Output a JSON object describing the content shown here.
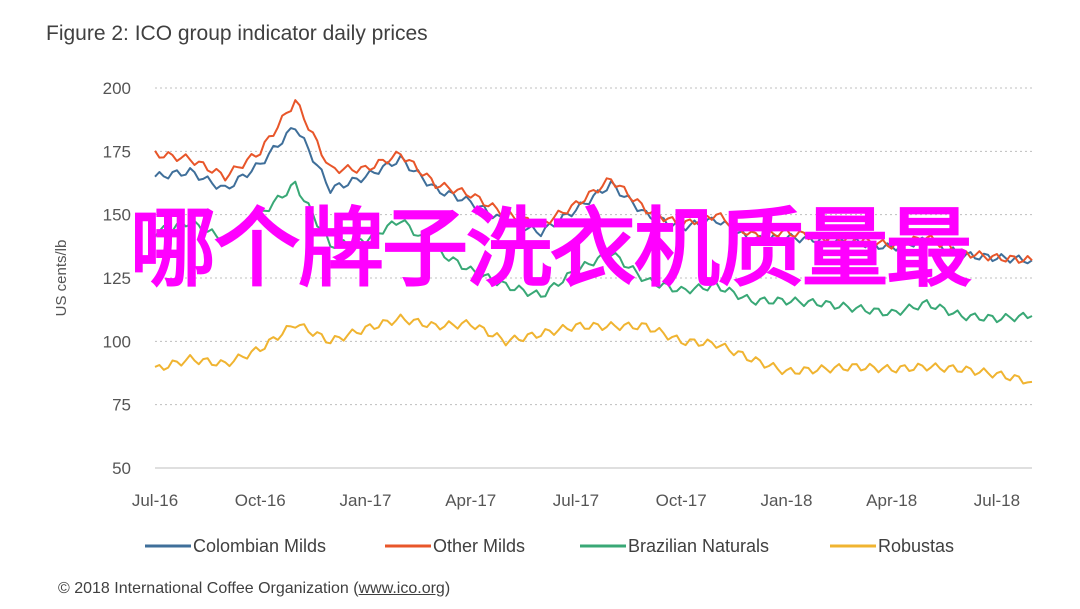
{
  "figure_title": "Figure 2: ICO group indicator daily prices",
  "footer": {
    "prefix": "© 2018 International Coffee Organization (",
    "link": "www.ico.org",
    "suffix": ")"
  },
  "overlay_text": "哪个牌子洗衣机质量最",
  "colors": {
    "Colombian Milds": "#3f6f9a",
    "Other Milds": "#e8562a",
    "Brazilian Naturals": "#39a876",
    "Robustas": "#f0b431",
    "grid": "#bfbfbf",
    "overlay": "#ff00ff"
  },
  "chart_data": {
    "type": "line",
    "title": "Figure 2: ICO group indicator daily prices",
    "ylabel": "US cents/lb",
    "xlabel": "",
    "ylim": [
      50,
      200
    ],
    "yticks": [
      50,
      75,
      100,
      125,
      150,
      175,
      200
    ],
    "xlim": [
      "2016-07",
      "2018-08"
    ],
    "xticks": [
      "Jul-16",
      "Oct-16",
      "Jan-17",
      "Apr-17",
      "Jul-17",
      "Oct-17",
      "Jan-18",
      "Apr-18",
      "Jul-18"
    ],
    "grid": "horizontal dotted",
    "legend": "bottom",
    "x": [
      "2016-07",
      "2016-08",
      "2016-09",
      "2016-10",
      "2016-11",
      "2016-12",
      "2017-01",
      "2017-02",
      "2017-03",
      "2017-04",
      "2017-05",
      "2017-06",
      "2017-07",
      "2017-08",
      "2017-09",
      "2017-10",
      "2017-11",
      "2017-12",
      "2018-01",
      "2018-02",
      "2018-03",
      "2018-04",
      "2018-05",
      "2018-06",
      "2018-07",
      "2018-08"
    ],
    "series": [
      {
        "name": "Colombian Milds",
        "values": [
          165,
          167,
          160,
          170,
          185,
          160,
          165,
          172,
          160,
          155,
          147,
          143,
          152,
          162,
          150,
          145,
          148,
          140,
          141,
          140,
          139,
          137,
          140,
          134,
          133,
          132
        ]
      },
      {
        "name": "Other Milds",
        "values": [
          174,
          172,
          165,
          175,
          195,
          168,
          168,
          174,
          162,
          158,
          150,
          146,
          154,
          164,
          152,
          146,
          150,
          142,
          143,
          141,
          140,
          138,
          141,
          135,
          133,
          132
        ]
      },
      {
        "name": "Brazilian Naturals",
        "values": [
          143,
          147,
          140,
          150,
          162,
          138,
          140,
          148,
          136,
          128,
          122,
          118,
          128,
          135,
          124,
          120,
          122,
          116,
          116,
          115,
          113,
          111,
          115,
          110,
          109,
          110
        ]
      },
      {
        "name": "Robustas",
        "values": [
          89,
          93,
          91,
          97,
          107,
          100,
          105,
          109,
          106,
          107,
          100,
          103,
          106,
          106,
          106,
          100,
          99,
          93,
          88,
          89,
          90,
          89,
          90,
          89,
          87,
          84
        ]
      }
    ]
  }
}
